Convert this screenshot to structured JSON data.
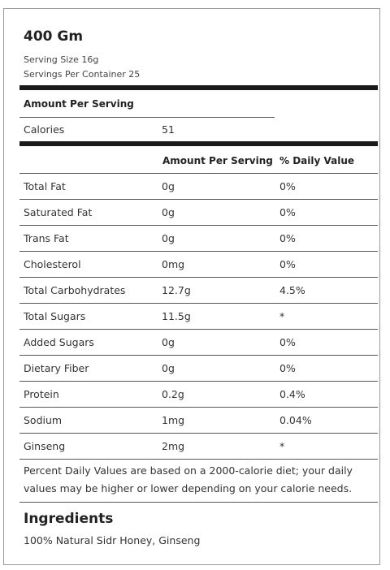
{
  "label": {
    "title": "400 Gm",
    "serving_size": "Serving Size 16g",
    "servings_per_container": "Servings Per Container 25",
    "amount_per_serving": "Amount Per Serving",
    "calories_label": "Calories",
    "calories_value": "51",
    "col_amount": "Amount Per Serving",
    "col_daily": "% Daily Value",
    "rows": [
      {
        "name": "Total Fat",
        "amount": "0g",
        "daily": "0%"
      },
      {
        "name": "Saturated Fat",
        "amount": "0g",
        "daily": "0%"
      },
      {
        "name": "Trans Fat",
        "amount": "0g",
        "daily": "0%"
      },
      {
        "name": "Cholesterol",
        "amount": "0mg",
        "daily": "0%"
      },
      {
        "name": "Total Carbohydrates",
        "amount": "12.7g",
        "daily": "4.5%"
      },
      {
        "name": "Total Sugars",
        "amount": "11.5g",
        "daily": "*"
      },
      {
        "name": "Added Sugars",
        "amount": "0g",
        "daily": "0%"
      },
      {
        "name": "Dietary Fiber",
        "amount": "0g",
        "daily": "0%"
      },
      {
        "name": "Protein",
        "amount": "0.2g",
        "daily": "0.4%"
      },
      {
        "name": "Sodium",
        "amount": "1mg",
        "daily": "0.04%"
      },
      {
        "name": "Ginseng",
        "amount": "2mg",
        "daily": "*"
      }
    ],
    "footnote": "Percent Daily Values are based on a 2000-calorie diet; your daily values may be higher or lower depending on your calorie needs.",
    "ingredients_title": "Ingredients",
    "ingredients_text": "100% Natural Sidr Honey, Ginseng"
  }
}
